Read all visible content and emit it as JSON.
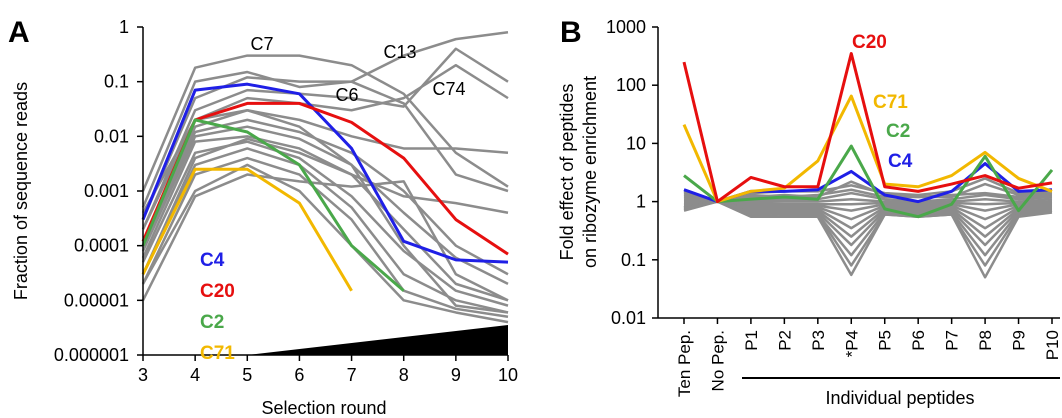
{
  "panels": {
    "a_letter": "A",
    "b_letter": "B"
  },
  "chart_data": [
    {
      "type": "line",
      "panel": "A",
      "xlabel": "Selection round",
      "ylabel": "Fraction of sequence reads",
      "x": [
        3,
        4,
        5,
        6,
        7,
        8,
        9,
        10
      ],
      "xlim": [
        3,
        10
      ],
      "ylim": [
        1e-06,
        1
      ],
      "yscale": "log",
      "y_tick_labels": [
        "0.000001",
        "0.00001",
        "0.0001",
        "0.001",
        "0.01",
        "0.1",
        "1"
      ],
      "x_tick_labels": [
        "3",
        "4",
        "5",
        "6",
        "7",
        "8",
        "9",
        "10"
      ],
      "annotations": [
        "C7",
        "C13",
        "C6",
        "C74"
      ],
      "legend_position": "bottom-left",
      "highlighted_series": [
        {
          "name": "C4",
          "color": "#1f1fe6",
          "values": [
            0.0003,
            0.07,
            0.09,
            0.06,
            0.006,
            0.00012,
            5.5e-05,
            5e-05
          ]
        },
        {
          "name": "C20",
          "color": "#e60f0f",
          "values": [
            0.00012,
            0.02,
            0.04,
            0.04,
            0.018,
            0.004,
            0.0003,
            7e-05
          ]
        },
        {
          "name": "C2",
          "color": "#4aa84a",
          "values": [
            0.0001,
            0.02,
            0.012,
            0.003,
            0.0001,
            1.5e-05
          ]
        },
        {
          "name": "C71",
          "color": "#f2b800",
          "values": [
            3e-05,
            0.0025,
            0.0025,
            0.0006,
            1.5e-05
          ]
        }
      ],
      "background_series_color": "#8c8c8c",
      "background_series": [
        [
          0.001,
          0.18,
          0.3,
          0.3,
          0.2,
          0.06,
          0.005,
          0.0012
        ],
        [
          0.0005,
          0.1,
          0.15,
          0.08,
          0.1,
          0.3,
          0.6,
          0.8
        ],
        [
          0.0003,
          0.05,
          0.12,
          0.1,
          0.1,
          0.04,
          0.002,
          0.001
        ],
        [
          0.0002,
          0.03,
          0.07,
          0.06,
          0.05,
          0.035,
          0.4,
          0.1
        ],
        [
          0.0004,
          0.02,
          0.05,
          0.04,
          0.03,
          0.05,
          0.2,
          0.05
        ],
        [
          0.0001,
          0.015,
          0.03,
          0.02,
          0.01,
          0.006,
          0.006,
          0.005
        ],
        [
          0.0001,
          0.012,
          0.02,
          0.012,
          0.005,
          0.001,
          0.0001,
          3e-05
        ],
        [
          8e-05,
          0.01,
          0.015,
          0.009,
          0.003,
          0.0004,
          6e-05,
          2e-05
        ],
        [
          6e-05,
          0.008,
          0.01,
          0.006,
          0.002,
          0.0002,
          2e-05,
          1e-05
        ],
        [
          5e-05,
          0.005,
          0.008,
          0.004,
          0.0008,
          8e-05,
          1.5e-05,
          8e-06
        ],
        [
          3e-05,
          0.003,
          0.006,
          0.003,
          0.0005,
          3e-05,
          1e-05,
          6e-06
        ],
        [
          2e-05,
          0.002,
          0.004,
          0.002,
          0.0003,
          1.5e-05,
          7e-06,
          5e-06
        ],
        [
          2e-05,
          0.001,
          0.003,
          0.001,
          0.0001,
          1e-05,
          6e-06,
          4e-06
        ],
        [
          1e-05,
          0.0008,
          0.002,
          0.0015,
          0.0012,
          0.0015,
          3e-05,
          1e-05
        ],
        [
          3e-05,
          0.004,
          0.009,
          0.005,
          0.002,
          0.0008,
          0.0006,
          0.0004
        ],
        [
          0.0002,
          0.02,
          0.03,
          0.015,
          0.003,
          0.0001,
          8e-06,
          6e-06
        ]
      ],
      "shaded_region": "black wedge along bottom from round 5 to 10"
    },
    {
      "type": "line",
      "panel": "B",
      "ylabel": [
        "Fold effect of peptides",
        "on ribozyme enrichment"
      ],
      "categories": [
        "Ten Pep.",
        "No Pep.",
        "P1",
        "P2",
        "P3",
        "*P4",
        "P5",
        "P6",
        "P7",
        "P8",
        "P9",
        "P10"
      ],
      "group_label": "Individual peptides",
      "ylim": [
        0.01,
        1000
      ],
      "yscale": "log",
      "y_tick_labels": [
        "0.01",
        "0.1",
        "1",
        "10",
        "100",
        "1000"
      ],
      "highlighted_series": [
        {
          "name": "C20",
          "color": "#e60f0f",
          "values": [
            250,
            1,
            2.6,
            1.8,
            1.8,
            350,
            1.8,
            1.5,
            2.0,
            2.8,
            1.7,
            2.1
          ]
        },
        {
          "name": "C71",
          "color": "#f2b800",
          "values": [
            21,
            1,
            1.5,
            1.7,
            5,
            65,
            2.0,
            1.8,
            2.8,
            7,
            2.5,
            1.5
          ]
        },
        {
          "name": "C2",
          "color": "#4aa84a",
          "values": [
            2.8,
            1,
            1.1,
            1.2,
            1.1,
            9,
            0.75,
            0.55,
            0.9,
            6,
            0.7,
            3.5
          ]
        },
        {
          "name": "C4",
          "color": "#1f1fe6",
          "values": [
            1.6,
            1,
            1.5,
            1.5,
            1.6,
            3.3,
            1.3,
            1.0,
            1.5,
            4.5,
            1.5,
            1.6
          ]
        }
      ],
      "background_series_color": "#8c8c8c",
      "background_series": [
        [
          1.3,
          1,
          1.3,
          1.2,
          1.3,
          1.6,
          1.2,
          1.2,
          1.3,
          1.4,
          1.2,
          1.3
        ],
        [
          1.2,
          1,
          1.1,
          1.1,
          1.1,
          1.4,
          1.1,
          1.0,
          1.1,
          1.3,
          1.1,
          1.2
        ],
        [
          1.1,
          1,
          1.0,
          1.0,
          1.0,
          1.1,
          1.0,
          0.95,
          1.0,
          1.1,
          1.0,
          1.1
        ],
        [
          1.0,
          1,
          0.95,
          0.9,
          0.9,
          0.9,
          0.95,
          0.9,
          0.95,
          0.9,
          0.95,
          1.0
        ],
        [
          0.95,
          1,
          0.9,
          0.85,
          0.85,
          0.7,
          0.9,
          0.85,
          0.9,
          0.7,
          0.9,
          0.95
        ],
        [
          0.9,
          1,
          0.85,
          0.8,
          0.8,
          0.5,
          0.85,
          0.8,
          0.85,
          0.5,
          0.85,
          0.9
        ],
        [
          0.85,
          1,
          0.8,
          0.75,
          0.75,
          0.35,
          0.8,
          0.75,
          0.8,
          0.35,
          0.8,
          0.85
        ],
        [
          0.8,
          1,
          0.75,
          0.7,
          0.7,
          0.25,
          0.75,
          0.7,
          0.75,
          0.25,
          0.75,
          0.8
        ],
        [
          0.8,
          1,
          0.7,
          0.65,
          0.65,
          0.18,
          0.7,
          0.65,
          0.7,
          0.18,
          0.7,
          0.75
        ],
        [
          0.75,
          1,
          0.65,
          0.6,
          0.6,
          0.12,
          0.65,
          0.6,
          0.65,
          0.12,
          0.65,
          0.7
        ],
        [
          0.75,
          1,
          0.6,
          0.55,
          0.6,
          0.08,
          0.6,
          0.55,
          0.6,
          0.08,
          0.6,
          0.7
        ],
        [
          0.7,
          1,
          0.55,
          0.55,
          0.55,
          0.055,
          0.6,
          0.55,
          0.6,
          0.05,
          0.55,
          0.65
        ],
        [
          1.5,
          1,
          1.4,
          1.5,
          1.5,
          1.9,
          1.4,
          1.3,
          1.5,
          2.5,
          1.4,
          1.5
        ],
        [
          1.4,
          1,
          1.2,
          1.3,
          1.2,
          2.2,
          1.3,
          1.2,
          1.2,
          2.0,
          1.3,
          1.4
        ]
      ]
    }
  ]
}
